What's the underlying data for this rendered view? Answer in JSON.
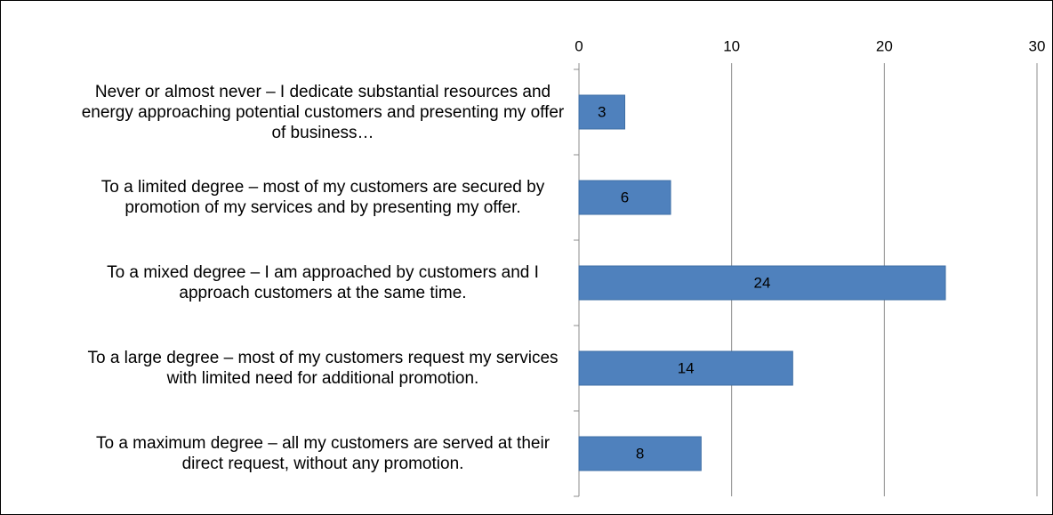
{
  "chart_data": {
    "type": "bar",
    "orientation": "horizontal",
    "categories": [
      "Never or almost never – I dedicate substantial resources and energy approaching potential customers and presenting my offer of business…",
      "To a limited degree – most of my customers are secured by promotion of my services and by presenting my offer.",
      "To a mixed degree – I am approached by customers and I approach customers at the same time.",
      "To a large degree – most of my customers request my services with limited need for additional promotion.",
      "To a maximum degree – all my customers are served at their direct request, without any promotion."
    ],
    "values": [
      3,
      6,
      24,
      14,
      8
    ],
    "color": "#4f81bd",
    "xlim": [
      0,
      30
    ],
    "xticks": [
      0,
      10,
      20,
      30
    ],
    "grid": true
  }
}
